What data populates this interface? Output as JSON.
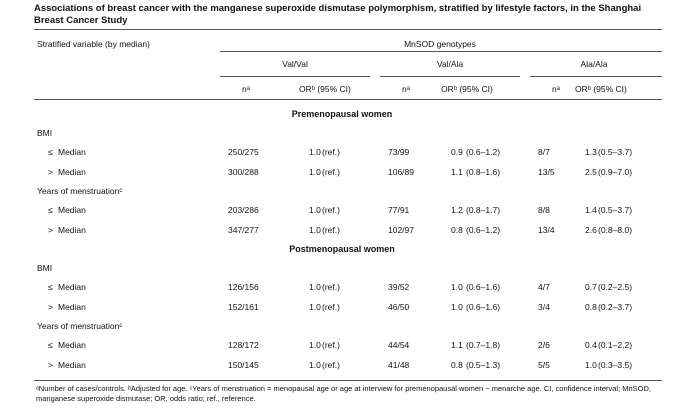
{
  "table": {
    "title": "Associations of breast cancer with the manganese superoxide dismutase polymorphism, stratified by lifestyle factors, in the Shanghai Breast Cancer Study",
    "stub_header": "Stratified variable (by median)",
    "spanner": "MnSOD genotypes",
    "genotypes": [
      "Val/Val",
      "Val/Ala",
      "Ala/Ala"
    ],
    "col_labels": {
      "n": "nᵃ",
      "or": "ORᵇ (95% CI)"
    },
    "sections": [
      {
        "label": "Premenopausal women",
        "groups": [
          {
            "name": "BMI",
            "rows": [
              {
                "sym": "≤",
                "label": "Median",
                "cells": [
                  [
                    "250/275",
                    "1.0",
                    "(ref.)"
                  ],
                  [
                    "73/99",
                    "0.9",
                    "(0.6–1.2)"
                  ],
                  [
                    "8/7",
                    "1.3",
                    "(0.5–3.7)"
                  ]
                ]
              },
              {
                "sym": ">",
                "label": "Median",
                "cells": [
                  [
                    "300/288",
                    "1.0",
                    "(ref.)"
                  ],
                  [
                    "106/89",
                    "1.1",
                    "(0.8–1.6)"
                  ],
                  [
                    "13/5",
                    "2.5",
                    "(0.9–7.0)"
                  ]
                ]
              }
            ]
          },
          {
            "name": "Years of menstruationᶜ",
            "rows": [
              {
                "sym": "≤",
                "label": "Median",
                "cells": [
                  [
                    "203/286",
                    "1.0",
                    "(ref.)"
                  ],
                  [
                    "77/91",
                    "1.2",
                    "(0.8–1.7)"
                  ],
                  [
                    "8/8",
                    "1.4",
                    "(0.5–3.7)"
                  ]
                ]
              },
              {
                "sym": ">",
                "label": "Median",
                "cells": [
                  [
                    "347/277",
                    "1.0",
                    "(ref.)"
                  ],
                  [
                    "102/97",
                    "0.8",
                    "(0.6–1.2)"
                  ],
                  [
                    "13/4",
                    "2.6",
                    "(0.8–8.0)"
                  ]
                ]
              }
            ]
          }
        ]
      },
      {
        "label": "Postmenopausal women",
        "groups": [
          {
            "name": "BMI",
            "rows": [
              {
                "sym": "≤",
                "label": "Median",
                "cells": [
                  [
                    "126/156",
                    "1.0",
                    "(ref.)"
                  ],
                  [
                    "39/52",
                    "1.0",
                    "(0.6–1.6)"
                  ],
                  [
                    "4/7",
                    "0.7",
                    "(0.2–2.5)"
                  ]
                ]
              },
              {
                "sym": ">",
                "label": "Median",
                "cells": [
                  [
                    "152/161",
                    "1.0",
                    "(ref.)"
                  ],
                  [
                    "46/50",
                    "1.0",
                    "(0.6–1.6)"
                  ],
                  [
                    "3/4",
                    "0.8",
                    "(0.2–3.7)"
                  ]
                ]
              }
            ]
          },
          {
            "name": "Years of menstruationᶜ",
            "rows": [
              {
                "sym": "≤",
                "label": "Median",
                "cells": [
                  [
                    "128/172",
                    "1.0",
                    "(ref.)"
                  ],
                  [
                    "44/54",
                    "1.1",
                    "(0.7–1.8)"
                  ],
                  [
                    "2/6",
                    "0.4",
                    "(0.1–2.2)"
                  ]
                ]
              },
              {
                "sym": ">",
                "label": "Median",
                "cells": [
                  [
                    "150/145",
                    "1.0",
                    "(ref.)"
                  ],
                  [
                    "41/48",
                    "0.8",
                    "(0.5–1.3)"
                  ],
                  [
                    "5/5",
                    "1.0",
                    "(0.3–3.5)"
                  ]
                ]
              }
            ]
          }
        ]
      }
    ],
    "footnote": "ᵃNumber of cases/controls. ᵇAdjusted for age. ᶜYears of menstruation = menopausal age or age at interview for premenopausal women − menarche age. CI, confidence interval; MnSOD, manganese superoxide dismutase; OR, odds ratio; ref., reference."
  }
}
